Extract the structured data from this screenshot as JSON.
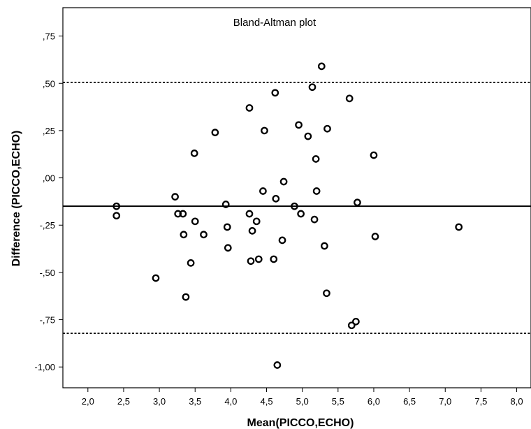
{
  "chart_data": {
    "type": "scatter",
    "title": "Bland-Altman plot",
    "xlabel": "Mean(PICCO,ECHO)",
    "ylabel": "Difference (PICCO,ECHO)",
    "xlim": [
      1.65,
      8.2
    ],
    "ylim": [
      -1.11,
      0.9
    ],
    "x_ticks": [
      2.0,
      2.5,
      3.0,
      3.5,
      4.0,
      4.5,
      5.0,
      5.5,
      6.0,
      6.5,
      7.0,
      7.5,
      8.0
    ],
    "x_tick_labels": [
      "2,0",
      "2,5",
      "3,0",
      "3,5",
      "4,0",
      "4,5",
      "5,0",
      "5,5",
      "6,0",
      "6,5",
      "7,0",
      "7,5",
      "8,0"
    ],
    "y_ticks": [
      0.75,
      0.5,
      0.25,
      0.0,
      -0.25,
      -0.5,
      -0.75,
      -1.0
    ],
    "y_tick_labels": [
      ",75",
      ",50",
      ",25",
      ",00",
      "-,25",
      "-,50",
      "-,75",
      "-1,00"
    ],
    "grid": false,
    "reference_lines": [
      {
        "y": 0.505,
        "style": "dotted"
      },
      {
        "y": -0.15,
        "style": "solid"
      },
      {
        "y": -0.822,
        "style": "dotted"
      }
    ],
    "points": [
      {
        "x": 2.4,
        "y": -0.15
      },
      {
        "x": 2.4,
        "y": -0.2
      },
      {
        "x": 2.95,
        "y": -0.53
      },
      {
        "x": 3.22,
        "y": -0.1
      },
      {
        "x": 3.26,
        "y": -0.19
      },
      {
        "x": 3.33,
        "y": -0.19
      },
      {
        "x": 3.34,
        "y": -0.3
      },
      {
        "x": 3.37,
        "y": -0.63
      },
      {
        "x": 3.44,
        "y": -0.45
      },
      {
        "x": 3.49,
        "y": 0.13
      },
      {
        "x": 3.5,
        "y": -0.23
      },
      {
        "x": 3.62,
        "y": -0.3
      },
      {
        "x": 3.78,
        "y": 0.24
      },
      {
        "x": 3.93,
        "y": -0.14
      },
      {
        "x": 3.95,
        "y": -0.26
      },
      {
        "x": 3.96,
        "y": -0.37
      },
      {
        "x": 4.26,
        "y": 0.37
      },
      {
        "x": 4.26,
        "y": -0.19
      },
      {
        "x": 4.28,
        "y": -0.44
      },
      {
        "x": 4.3,
        "y": -0.28
      },
      {
        "x": 4.36,
        "y": -0.23
      },
      {
        "x": 4.39,
        "y": -0.43
      },
      {
        "x": 4.45,
        "y": -0.07
      },
      {
        "x": 4.47,
        "y": 0.25
      },
      {
        "x": 4.6,
        "y": -0.43
      },
      {
        "x": 4.62,
        "y": 0.45
      },
      {
        "x": 4.63,
        "y": -0.11
      },
      {
        "x": 4.65,
        "y": -0.99
      },
      {
        "x": 4.72,
        "y": -0.33
      },
      {
        "x": 4.74,
        "y": -0.02
      },
      {
        "x": 4.89,
        "y": -0.15
      },
      {
        "x": 4.95,
        "y": 0.28
      },
      {
        "x": 4.98,
        "y": -0.19
      },
      {
        "x": 5.08,
        "y": 0.22
      },
      {
        "x": 5.14,
        "y": 0.48
      },
      {
        "x": 5.17,
        "y": -0.22
      },
      {
        "x": 5.19,
        "y": 0.1
      },
      {
        "x": 5.2,
        "y": -0.07
      },
      {
        "x": 5.27,
        "y": 0.59
      },
      {
        "x": 5.31,
        "y": -0.36
      },
      {
        "x": 5.34,
        "y": -0.61
      },
      {
        "x": 5.35,
        "y": 0.26
      },
      {
        "x": 5.66,
        "y": 0.42
      },
      {
        "x": 5.69,
        "y": -0.78
      },
      {
        "x": 5.75,
        "y": -0.76
      },
      {
        "x": 5.77,
        "y": -0.13
      },
      {
        "x": 6.0,
        "y": 0.12
      },
      {
        "x": 6.02,
        "y": -0.31
      },
      {
        "x": 7.19,
        "y": -0.26
      }
    ],
    "marker": "open-circle",
    "color": "#000000"
  }
}
